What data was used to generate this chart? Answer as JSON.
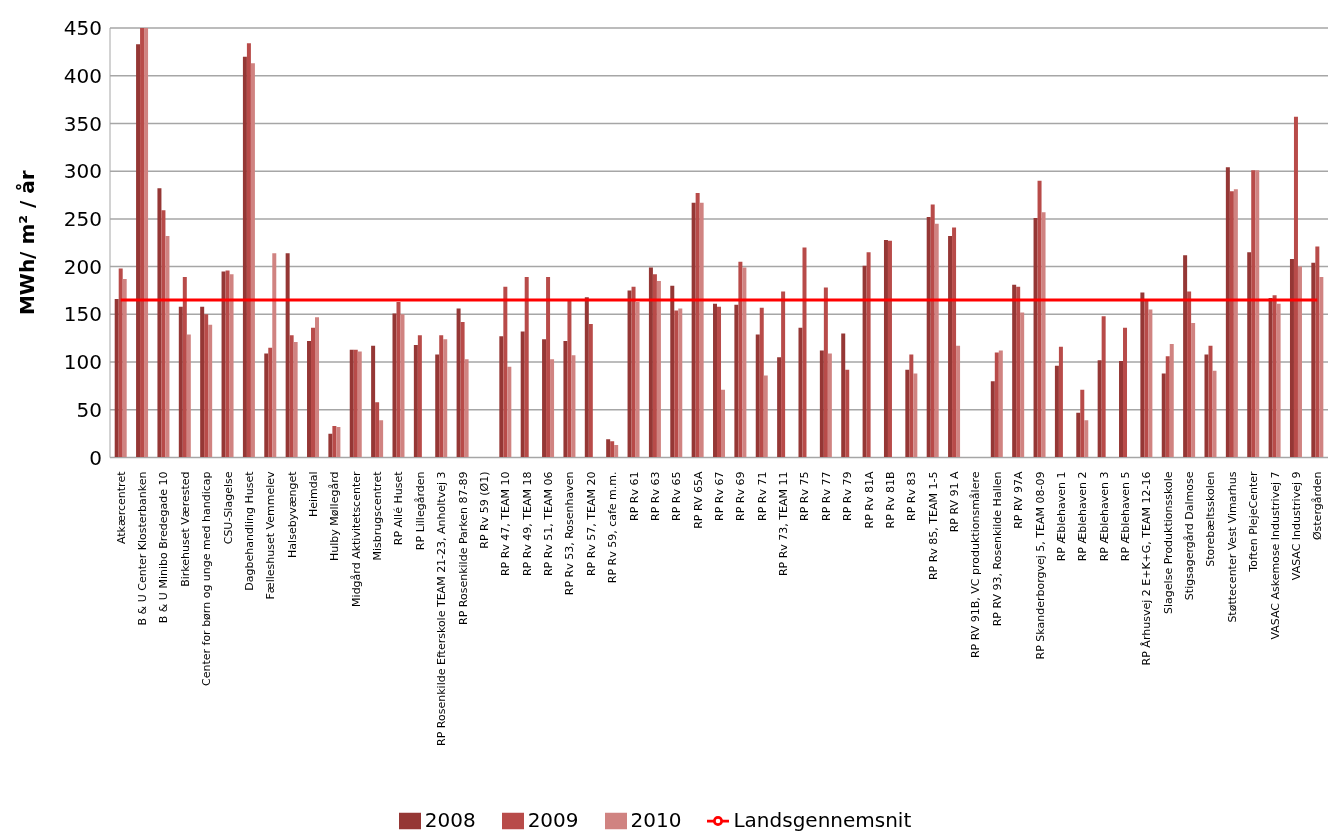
{
  "chart_data": {
    "type": "bar",
    "ylabel": "MWh/ m² / år",
    "categories": [
      "Atkærcentret",
      "B & U Center Klosterbanken",
      "B & U Minibo Bredegade 10",
      "Birkehuset Værested",
      "Center for børn og unge med handicap",
      "CSU-Slagelse",
      "Dagbehandling Huset",
      "Fælleshuset Vemmelev",
      "Halsebyvænget",
      "Heimdal",
      "Hulby Møllegård",
      "Midgård Aktivitetscenter",
      "Misbrugscentret",
      "RP Allé Huset",
      "RP Lillegården",
      "RP Rosenkilde Efterskole TEAM 21-23, Anholtvej 3",
      "RP Rosenkilde Parken 87-89",
      "RP Rv  59 (Ø1)",
      "RP Rv 47, TEAM 10",
      "RP Rv 49, TEAM 18",
      "RP Rv 51, TEAM 06",
      "RP Rv 53, Rosenhaven",
      "RP Rv 57, TEAM 20",
      "RP Rv 59, cafe m.m.",
      "RP Rv 61",
      "RP Rv 63",
      "RP Rv 65",
      "RP RV 65A",
      "RP Rv 67",
      "RP Rv 69",
      "RP Rv 71",
      "RP Rv 73, TEAM 11",
      "RP Rv 75",
      "RP Rv 77",
      "RP Rv 79",
      "RP Rv 81A",
      "RP Rv 81B",
      "RP Rv 83",
      "RP Rv 85, TEAM 1-5",
      "RP RV 91 A",
      "RP RV 91B, VC produktionsmålere",
      "RP RV 93, Rosenkilde Hallen",
      "RP RV 97A",
      "RP Skanderborgvej 5, TEAM 08-09",
      "RP Æblehaven 1",
      "RP Æblehaven 2",
      "RP Æblehaven 3",
      "RP Æblehaven 5",
      "RP Århusvej 2 E+K+G, TEAM 12-16",
      "Slagelse Produktionsskole",
      "Stigsagergård Dalmose",
      "Storebæltsskolen",
      "Støttecenter Vest Vimarhus",
      "Toften PlejeCenter",
      "VASAC Askemose Industrivej 7",
      "VASAC Industrivej 9",
      "Østergården"
    ],
    "series": [
      {
        "name": "2008",
        "color": "#953735",
        "values": [
          166,
          433,
          282,
          158,
          158,
          195,
          420,
          109,
          214,
          122,
          25,
          113,
          117,
          151,
          118,
          108,
          156,
          null,
          127,
          132,
          124,
          122,
          168,
          19,
          175,
          199,
          180,
          267,
          161,
          160,
          129,
          105,
          136,
          112,
          130,
          201,
          228,
          92,
          252,
          232,
          null,
          80,
          181,
          251,
          96,
          47,
          102,
          101,
          173,
          88,
          212,
          108,
          304,
          215,
          167,
          208,
          204
        ]
      },
      {
        "name": "2009",
        "color": "#b84b49",
        "values": [
          198,
          450,
          259,
          189,
          150,
          196,
          434,
          115,
          128,
          136,
          33,
          113,
          58,
          163,
          128,
          128,
          142,
          null,
          179,
          189,
          189,
          164,
          140,
          17,
          179,
          192,
          154,
          277,
          158,
          205,
          157,
          174,
          220,
          178,
          92,
          215,
          227,
          108,
          265,
          241,
          null,
          110,
          179,
          290,
          116,
          71,
          148,
          136,
          166,
          106,
          174,
          117,
          279,
          301,
          170,
          357,
          221
        ]
      },
      {
        "name": "2010",
        "color": "#d08381",
        "values": [
          187,
          450,
          232,
          129,
          139,
          192,
          413,
          214,
          121,
          147,
          32,
          111,
          39,
          150,
          null,
          124,
          103,
          null,
          95,
          null,
          103,
          107,
          null,
          13,
          163,
          185,
          156,
          267,
          71,
          199,
          86,
          null,
          null,
          109,
          null,
          null,
          null,
          88,
          245,
          117,
          null,
          112,
          152,
          257,
          null,
          39,
          null,
          null,
          155,
          119,
          141,
          91,
          281,
          301,
          161,
          200,
          189
        ]
      },
      {
        "name": "Landsgennemsnit",
        "type": "line",
        "color": "#ff0000",
        "values": [
          165,
          165,
          165,
          165,
          165,
          165,
          165,
          165,
          165,
          165,
          165,
          165,
          165,
          165,
          165,
          165,
          165,
          165,
          165,
          165,
          165,
          165,
          165,
          165,
          165,
          165,
          165,
          165,
          165,
          165,
          165,
          165,
          165,
          165,
          165,
          165,
          165,
          165,
          165,
          165,
          165,
          165,
          165,
          165,
          165,
          165,
          165,
          165,
          165,
          165,
          165,
          165,
          165,
          165,
          165,
          165,
          165
        ]
      }
    ],
    "ylim": [
      0,
      450
    ],
    "yticks": [
      0,
      50,
      100,
      150,
      200,
      250,
      300,
      350,
      400,
      450
    ],
    "grid": "y",
    "legend": "bottom",
    "marker": "none"
  }
}
